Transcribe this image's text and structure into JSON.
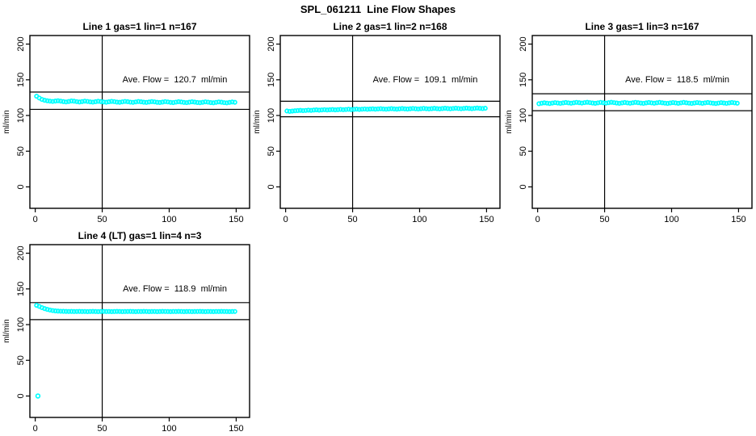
{
  "figure": {
    "title": "SPL_061211  Line Flow Shapes"
  },
  "colors": {
    "points": "#00FFFF",
    "axis": "#000000",
    "background": "#FFFFFF"
  },
  "chart_data": [
    {
      "type": "scatter",
      "title": "Line 1 gas=1 lin=1 n=167",
      "annotation": "Ave. Flow =  120.7  ml/min",
      "ave_flow_ml_min": 120.7,
      "n": 167,
      "ylabel": "ml/min",
      "x_ticks": [
        0,
        50,
        100,
        150
      ],
      "y_ticks": [
        0,
        50,
        100,
        150,
        200
      ],
      "xlim": [
        -4,
        160
      ],
      "ylim": [
        -30,
        212
      ],
      "vline_x": 50,
      "ref_lines": [
        132.8,
        108.6
      ],
      "x_start": 1,
      "x_step": 2,
      "y": [
        127,
        124.5,
        122.5,
        121.3,
        120.6,
        120.1,
        119.7,
        120.2,
        120.6,
        120.1,
        119.5,
        119.0,
        119.6,
        120.3,
        120.0,
        119.4,
        118.9,
        119.5,
        120.1,
        119.7,
        119.1,
        118.7,
        119.3,
        119.9,
        119.5,
        118.9,
        118.6,
        119.2,
        119.8,
        119.4,
        118.8,
        118.5,
        119.1,
        119.7,
        119.3,
        118.7,
        118.4,
        119.0,
        119.6,
        119.2,
        118.6,
        118.3,
        118.9,
        119.5,
        119.1,
        118.5,
        118.2,
        118.8,
        119.4,
        119.0,
        118.4,
        118.1,
        118.7,
        119.3,
        118.9,
        118.3,
        118.0,
        118.6,
        119.2,
        118.8,
        118.2,
        117.9,
        118.5,
        119.1,
        118.7,
        118.1,
        117.8,
        118.4,
        119.0,
        118.6,
        118.0,
        117.7,
        118.3,
        118.9,
        118.5
      ]
    },
    {
      "type": "scatter",
      "title": "Line 2 gas=1 lin=2 n=168",
      "annotation": "Ave. Flow =  109.1  ml/min",
      "ave_flow_ml_min": 109.1,
      "n": 168,
      "ylabel": "ml/min",
      "x_ticks": [
        0,
        50,
        100,
        150
      ],
      "y_ticks": [
        0,
        50,
        100,
        150,
        200
      ],
      "xlim": [
        -4,
        160
      ],
      "ylim": [
        -30,
        212
      ],
      "vline_x": 50,
      "ref_lines": [
        120.0,
        98.2
      ],
      "x_start": 1,
      "x_step": 2,
      "y": [
        106.3,
        105.8,
        106.2,
        106.6,
        106.9,
        107.2,
        106.8,
        107.1,
        107.5,
        107.2,
        107.6,
        107.9,
        107.5,
        107.8,
        108.1,
        107.7,
        108.0,
        108.3,
        107.9,
        108.2,
        108.5,
        108.1,
        108.4,
        108.7,
        108.3,
        108.6,
        108.9,
        108.5,
        108.8,
        109.1,
        108.7,
        109.0,
        109.3,
        108.9,
        109.2,
        109.5,
        109.1,
        108.8,
        109.2,
        109.6,
        109.2,
        108.9,
        109.3,
        109.7,
        109.3,
        109.0,
        109.4,
        109.8,
        109.4,
        109.1,
        109.5,
        109.9,
        109.5,
        109.2,
        109.6,
        110.0,
        109.6,
        109.3,
        109.7,
        110.1,
        109.7,
        109.4,
        109.8,
        110.2,
        109.8,
        109.5,
        109.9,
        110.3,
        109.9,
        109.6,
        110.0,
        110.4,
        110.0,
        109.7,
        110.1
      ]
    },
    {
      "type": "scatter",
      "title": "Line 3 gas=1 lin=3 n=167",
      "annotation": "Ave. Flow =  118.5  ml/min",
      "ave_flow_ml_min": 118.5,
      "n": 167,
      "ylabel": "ml/min",
      "x_ticks": [
        0,
        50,
        100,
        150
      ],
      "y_ticks": [
        0,
        50,
        100,
        150,
        200
      ],
      "xlim": [
        -4,
        160
      ],
      "ylim": [
        -30,
        212
      ],
      "vline_x": 50,
      "ref_lines": [
        130.4,
        106.7
      ],
      "x_start": 1,
      "x_step": 2,
      "y": [
        116.5,
        117.2,
        117.8,
        117.3,
        116.8,
        117.4,
        118.0,
        117.5,
        117.0,
        117.6,
        118.2,
        117.7,
        117.2,
        117.8,
        118.4,
        117.9,
        117.4,
        118.0,
        118.5,
        118.0,
        117.5,
        117.1,
        117.7,
        118.3,
        117.8,
        117.3,
        117.9,
        118.5,
        118.0,
        117.5,
        117.0,
        117.6,
        118.2,
        117.7,
        117.2,
        117.8,
        118.4,
        117.9,
        117.4,
        117.0,
        117.6,
        118.2,
        117.7,
        117.2,
        117.8,
        118.3,
        117.8,
        117.3,
        116.9,
        117.5,
        118.1,
        117.6,
        117.1,
        117.7,
        118.3,
        117.8,
        117.3,
        116.9,
        117.5,
        118.1,
        117.6,
        117.1,
        117.7,
        118.2,
        117.7,
        117.2,
        116.8,
        117.4,
        118.0,
        117.5,
        117.0,
        117.6,
        118.2,
        117.7,
        117.2
      ]
    },
    {
      "type": "scatter",
      "title": "Line 4 (LT) gas=1 lin=4 n=3",
      "annotation": "Ave. Flow =  118.9  ml/min",
      "ave_flow_ml_min": 118.9,
      "n": 3,
      "ylabel": "ml/min",
      "x_ticks": [
        0,
        50,
        100,
        150
      ],
      "y_ticks": [
        0,
        50,
        100,
        150,
        200
      ],
      "xlim": [
        -4,
        160
      ],
      "ylim": [
        -30,
        212
      ],
      "vline_x": 50,
      "ref_lines": [
        130.8,
        107.0
      ],
      "outlier": [
        2,
        0
      ],
      "x_start": 1,
      "x_step": 2,
      "y": [
        127.0,
        125.5,
        123.8,
        122.4,
        121.3,
        120.4,
        119.7,
        119.2,
        118.9,
        118.7,
        118.6,
        118.5,
        118.4,
        118.5,
        118.3,
        118.4,
        118.5,
        118.3,
        118.4,
        118.2,
        118.4,
        118.5,
        118.3,
        118.2,
        118.4,
        118.5,
        118.3,
        118.4,
        118.2,
        118.3,
        118.5,
        118.4,
        118.2,
        118.3,
        118.4,
        118.5,
        118.3,
        118.2,
        118.4,
        118.3,
        118.5,
        118.4,
        118.2,
        118.3,
        118.4,
        118.2,
        118.3,
        118.5,
        118.4,
        118.3,
        118.2,
        118.4,
        118.3,
        118.5,
        118.4,
        118.2,
        118.3,
        118.4,
        118.2,
        118.3,
        118.4,
        118.5,
        118.3,
        118.2,
        118.4,
        118.3,
        118.2,
        118.4,
        118.3,
        118.5,
        118.4,
        118.3,
        118.2,
        118.3,
        118.4
      ]
    }
  ]
}
